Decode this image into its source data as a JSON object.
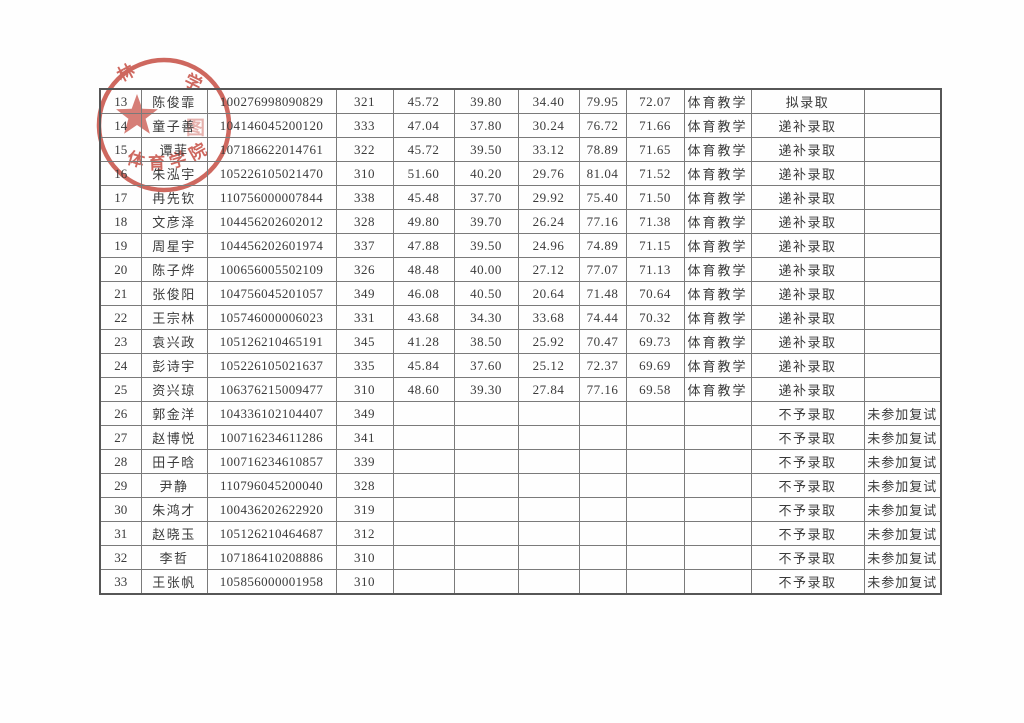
{
  "page": {
    "background": "#fefefe"
  },
  "seal": {
    "color": "#c5463c",
    "top_left_char": "林",
    "top_right_char": "学",
    "inner_char": "图",
    "bottom_text": "体育学院"
  },
  "table": {
    "rows": [
      [
        "13",
        "陈俊霏",
        "100276998090829",
        "321",
        "45.72",
        "39.80",
        "34.40",
        "79.95",
        "72.07",
        "体育教学",
        "拟录取",
        ""
      ],
      [
        "14",
        "童子善",
        "104146045200120",
        "333",
        "47.04",
        "37.80",
        "30.24",
        "76.72",
        "71.66",
        "体育教学",
        "递补录取",
        ""
      ],
      [
        "15",
        "谭菲",
        "107186622014761",
        "322",
        "45.72",
        "39.50",
        "33.12",
        "78.89",
        "71.65",
        "体育教学",
        "递补录取",
        ""
      ],
      [
        "16",
        "朱泓宇",
        "105226105021470",
        "310",
        "51.60",
        "40.20",
        "29.76",
        "81.04",
        "71.52",
        "体育教学",
        "递补录取",
        ""
      ],
      [
        "17",
        "冉先钦",
        "110756000007844",
        "338",
        "45.48",
        "37.70",
        "29.92",
        "75.40",
        "71.50",
        "体育教学",
        "递补录取",
        ""
      ],
      [
        "18",
        "文彦泽",
        "104456202602012",
        "328",
        "49.80",
        "39.70",
        "26.24",
        "77.16",
        "71.38",
        "体育教学",
        "递补录取",
        ""
      ],
      [
        "19",
        "周星宇",
        "104456202601974",
        "337",
        "47.88",
        "39.50",
        "24.96",
        "74.89",
        "71.15",
        "体育教学",
        "递补录取",
        ""
      ],
      [
        "20",
        "陈子烨",
        "100656005502109",
        "326",
        "48.48",
        "40.00",
        "27.12",
        "77.07",
        "71.13",
        "体育教学",
        "递补录取",
        ""
      ],
      [
        "21",
        "张俊阳",
        "104756045201057",
        "349",
        "46.08",
        "40.50",
        "20.64",
        "71.48",
        "70.64",
        "体育教学",
        "递补录取",
        ""
      ],
      [
        "22",
        "王宗林",
        "105746000006023",
        "331",
        "43.68",
        "34.30",
        "33.68",
        "74.44",
        "70.32",
        "体育教学",
        "递补录取",
        ""
      ],
      [
        "23",
        "袁兴政",
        "105126210465191",
        "345",
        "41.28",
        "38.50",
        "25.92",
        "70.47",
        "69.73",
        "体育教学",
        "递补录取",
        ""
      ],
      [
        "24",
        "彭诗宇",
        "105226105021637",
        "335",
        "45.84",
        "37.60",
        "25.12",
        "72.37",
        "69.69",
        "体育教学",
        "递补录取",
        ""
      ],
      [
        "25",
        "资兴琼",
        "106376215009477",
        "310",
        "48.60",
        "39.30",
        "27.84",
        "77.16",
        "69.58",
        "体育教学",
        "递补录取",
        ""
      ],
      [
        "26",
        "郭金洋",
        "104336102104407",
        "349",
        "",
        "",
        "",
        "",
        "",
        "",
        "不予录取",
        "未参加复试"
      ],
      [
        "27",
        "赵博悦",
        "100716234611286",
        "341",
        "",
        "",
        "",
        "",
        "",
        "",
        "不予录取",
        "未参加复试"
      ],
      [
        "28",
        "田子晗",
        "100716234610857",
        "339",
        "",
        "",
        "",
        "",
        "",
        "",
        "不予录取",
        "未参加复试"
      ],
      [
        "29",
        "尹静",
        "110796045200040",
        "328",
        "",
        "",
        "",
        "",
        "",
        "",
        "不予录取",
        "未参加复试"
      ],
      [
        "30",
        "朱鸿才",
        "100436202622920",
        "319",
        "",
        "",
        "",
        "",
        "",
        "",
        "不予录取",
        "未参加复试"
      ],
      [
        "31",
        "赵晓玉",
        "105126210464687",
        "312",
        "",
        "",
        "",
        "",
        "",
        "",
        "不予录取",
        "未参加复试"
      ],
      [
        "32",
        "李哲",
        "107186410208886",
        "310",
        "",
        "",
        "",
        "",
        "",
        "",
        "不予录取",
        "未参加复试"
      ],
      [
        "33",
        "王张帆",
        "105856000001958",
        "310",
        "",
        "",
        "",
        "",
        "",
        "",
        "不予录取",
        "未参加复试"
      ]
    ]
  }
}
